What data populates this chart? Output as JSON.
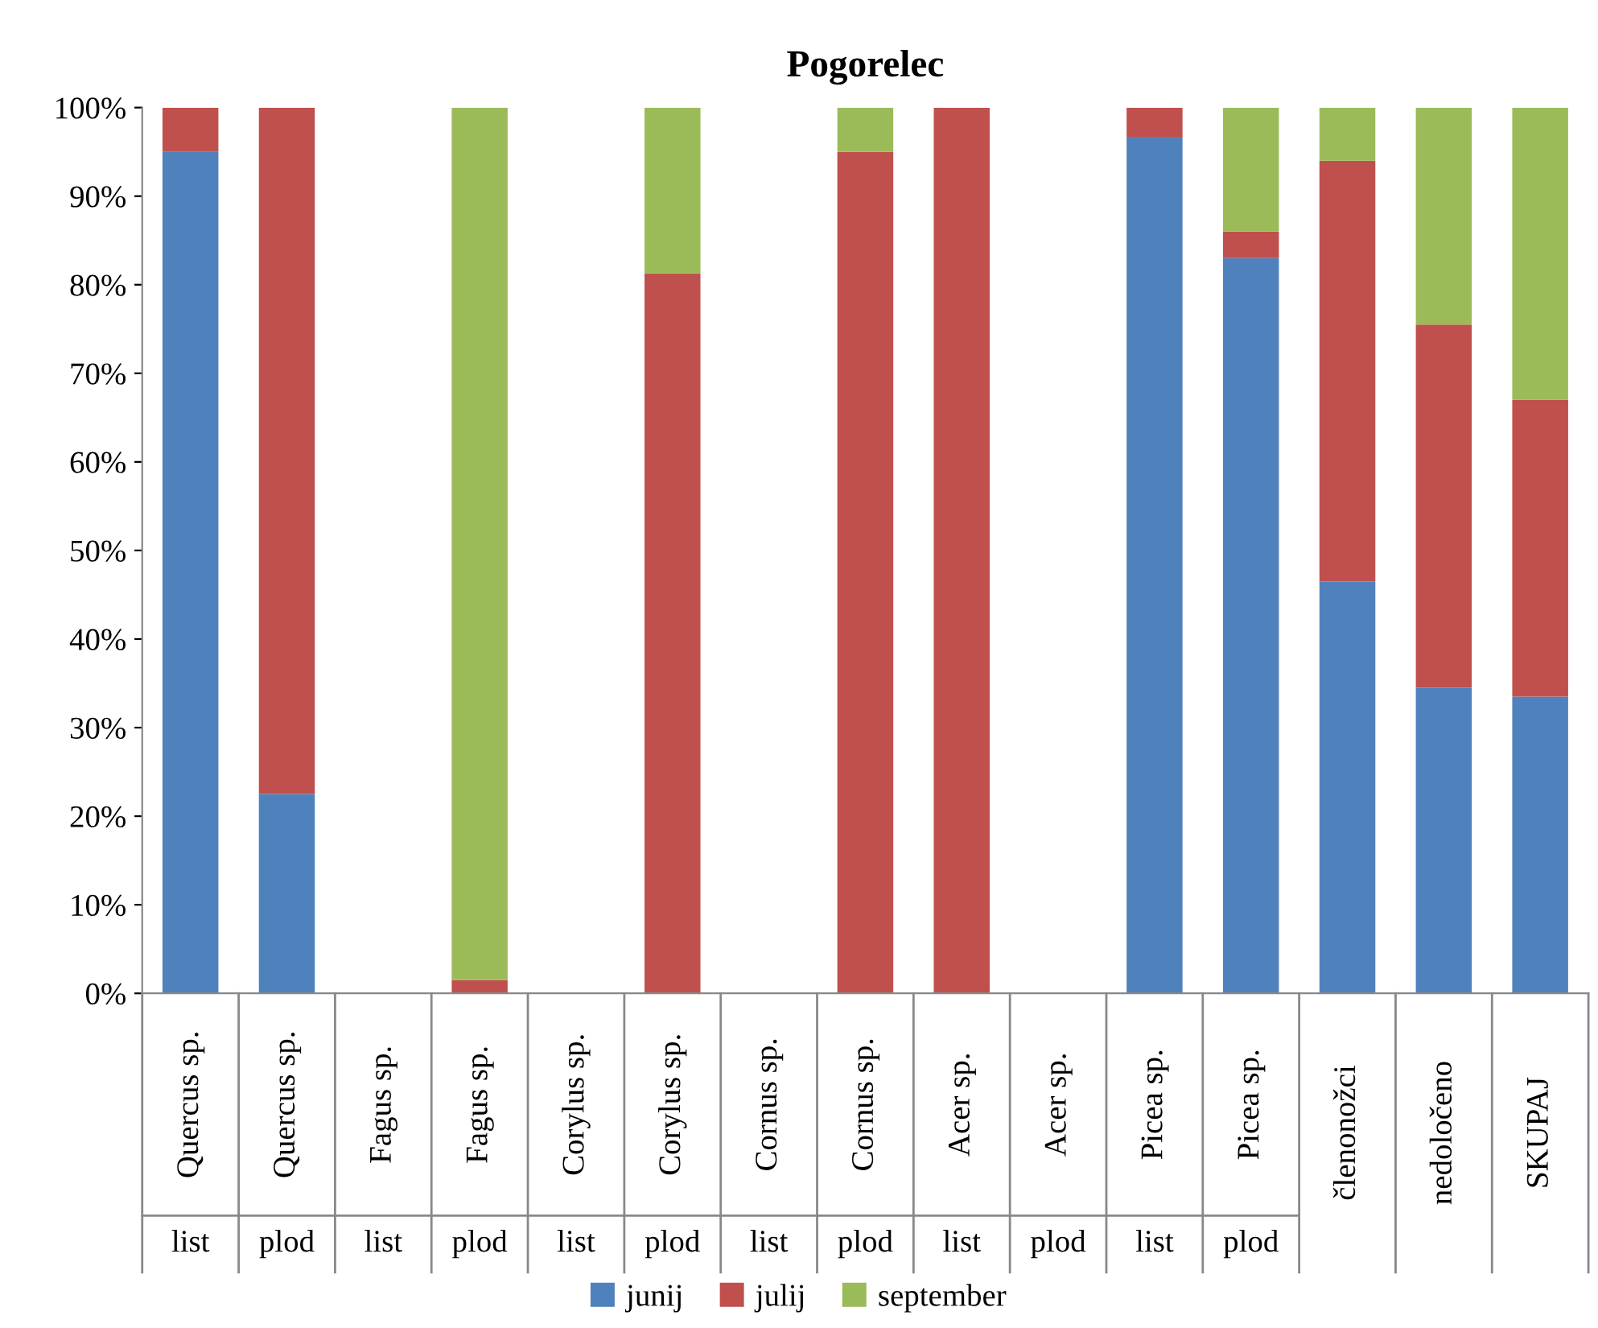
{
  "chart_data": {
    "type": "bar",
    "title": "Pogorelec",
    "stacked": true,
    "categories": [
      "Quercus sp.\nlist",
      "Quercus sp.\nplod",
      "Fagus sp.\nlist",
      "Fagus sp.\nplod",
      "Corylus sp.\nlist",
      "Corylus sp.\nplod",
      "Cornus sp.\nlist",
      "Cornus sp.\nplod",
      "Acer sp.\nlist",
      "Acer sp.\nplod",
      "Picea sp.\nlist",
      "Picea sp.\nplod",
      "členonožci",
      "nedoločeno",
      "SKUPAJ"
    ],
    "series": [
      {
        "name": "junij",
        "color": "#4f81bd",
        "values": [
          95,
          22.5,
          0,
          0,
          0,
          0,
          0,
          0,
          0,
          0,
          96.7,
          83,
          46.5,
          34.5,
          33.5
        ]
      },
      {
        "name": "julij",
        "color": "#c0504d",
        "values": [
          5,
          77.5,
          0,
          1.5,
          0,
          81.3,
          0,
          95,
          100,
          0,
          3.3,
          3,
          47.5,
          41,
          33.5
        ]
      },
      {
        "name": "september",
        "color": "#9bbb59",
        "values": [
          0,
          0,
          0,
          98.5,
          0,
          18.7,
          0,
          5,
          0,
          0,
          0,
          14,
          6,
          24.5,
          33
        ]
      }
    ],
    "ylim": [
      0,
      100
    ],
    "yticks": [
      {
        "value": 0,
        "label": "0%"
      },
      {
        "value": 10,
        "label": "10%"
      },
      {
        "value": 20,
        "label": "20%"
      },
      {
        "value": 30,
        "label": "30%"
      },
      {
        "value": 40,
        "label": "40%"
      },
      {
        "value": 50,
        "label": "50%"
      },
      {
        "value": 60,
        "label": "60%"
      },
      {
        "value": 70,
        "label": "70%"
      },
      {
        "value": 80,
        "label": "80%"
      },
      {
        "value": 90,
        "label": "90%"
      },
      {
        "value": 100,
        "label": "100%"
      }
    ],
    "grid": false,
    "legend": "bottom"
  }
}
